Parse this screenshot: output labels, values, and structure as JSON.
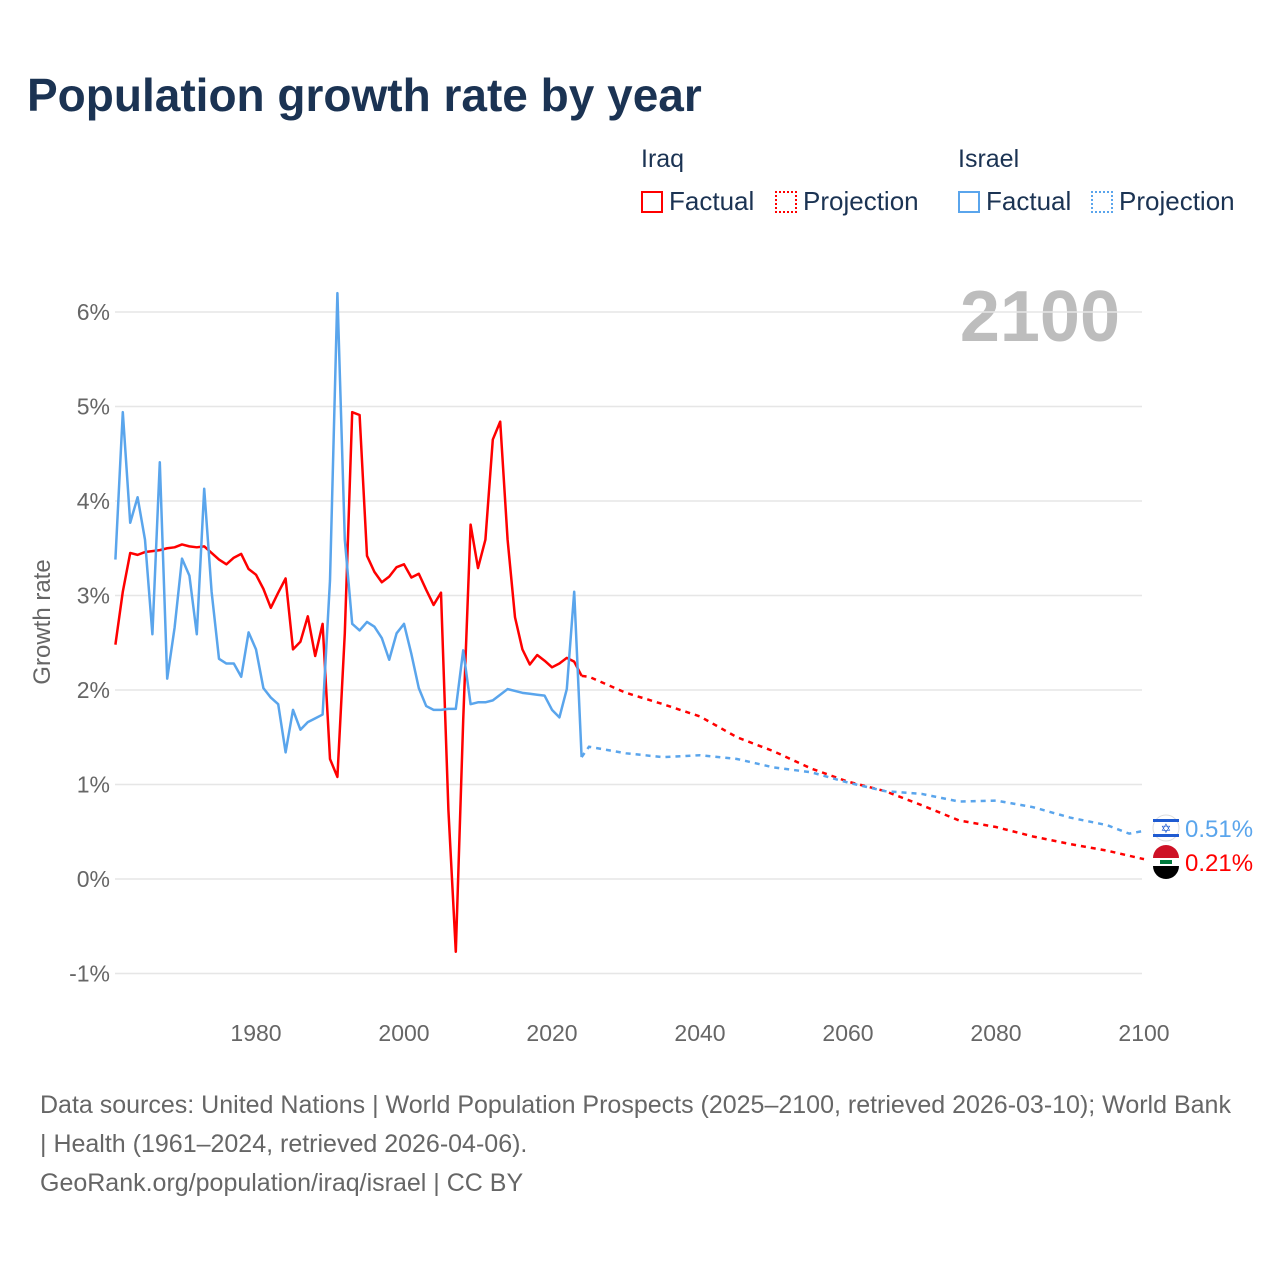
{
  "title": "Population growth rate by year",
  "legend": {
    "groups": [
      {
        "name": "Iraq",
        "factual": "Factual",
        "projection": "Projection",
        "color": "#ff0000"
      },
      {
        "name": "Israel",
        "factual": "Factual",
        "projection": "Projection",
        "color": "#5aa5ec"
      }
    ]
  },
  "footer": {
    "sources": "Data sources: United Nations | World Population Prospects (2025–2100, retrieved 2026-03-10); World Bank | Health (1961–2024, retrieved 2026-04-06).",
    "link": "GeoRank.org/population/iraq/israel | CC BY"
  },
  "chart_data": {
    "type": "line",
    "title": "Population growth rate by year",
    "xlabel": "",
    "ylabel": "Growth rate",
    "current_year_label": "2100",
    "xlim": [
      1961,
      2100
    ],
    "ylim": [
      -1.1,
      6.3
    ],
    "x_ticks": [
      1980,
      2000,
      2020,
      2040,
      2060,
      2080,
      2100
    ],
    "y_ticks": [
      -1,
      0,
      1,
      2,
      3,
      4,
      5,
      6
    ],
    "y_tick_labels": [
      "-1%",
      "0%",
      "1%",
      "2%",
      "3%",
      "4%",
      "5%",
      "6%"
    ],
    "grid": true,
    "series": [
      {
        "name": "Iraq",
        "color": "#ff0000",
        "end_label": "0.21%",
        "factual": {
          "start_year": 1961,
          "values": [
            2.48,
            3.04,
            3.45,
            3.43,
            3.46,
            3.47,
            3.48,
            3.5,
            3.51,
            3.54,
            3.52,
            3.51,
            3.52,
            3.45,
            3.38,
            3.33,
            3.4,
            3.44,
            3.28,
            3.22,
            3.07,
            2.87,
            3.03,
            3.18,
            2.43,
            2.51,
            2.78,
            2.36,
            2.7,
            1.27,
            1.08,
            2.6,
            4.94,
            4.91,
            3.42,
            3.25,
            3.14,
            3.2,
            3.3,
            3.33,
            3.19,
            3.23,
            3.06,
            2.9,
            3.03,
            0.73,
            -0.77,
            1.68,
            3.75,
            3.29,
            3.59,
            4.65,
            4.84,
            3.59,
            2.77,
            2.43,
            2.27,
            2.37,
            2.31,
            2.24,
            2.28,
            2.34,
            2.3,
            2.15
          ]
        },
        "projection": {
          "years": [
            2025,
            2030,
            2035,
            2040,
            2045,
            2050,
            2055,
            2060,
            2065,
            2070,
            2075,
            2080,
            2085,
            2090,
            2095,
            2100
          ],
          "values": [
            2.14,
            1.97,
            1.85,
            1.72,
            1.5,
            1.35,
            1.17,
            1.03,
            0.93,
            0.78,
            0.62,
            0.55,
            0.45,
            0.37,
            0.3,
            0.21
          ]
        }
      },
      {
        "name": "Israel",
        "color": "#5aa5ec",
        "end_label": "0.51%",
        "factual": {
          "start_year": 1961,
          "values": [
            3.38,
            4.94,
            3.77,
            4.04,
            3.59,
            2.59,
            4.41,
            2.12,
            2.66,
            3.39,
            3.21,
            2.59,
            4.13,
            3.04,
            2.33,
            2.28,
            2.28,
            2.14,
            2.61,
            2.43,
            2.02,
            1.92,
            1.85,
            1.34,
            1.79,
            1.58,
            1.66,
            1.7,
            1.74,
            3.16,
            6.2,
            3.59,
            2.7,
            2.63,
            2.72,
            2.67,
            2.55,
            2.32,
            2.6,
            2.7,
            2.38,
            2.02,
            1.83,
            1.79,
            1.79,
            1.8,
            1.8,
            2.42,
            1.85,
            1.87,
            1.87,
            1.89,
            1.95,
            2.01,
            1.99,
            1.97,
            1.96,
            1.95,
            1.94,
            1.79,
            1.71,
            2.01,
            3.04,
            1.29
          ]
        },
        "projection": {
          "years": [
            2025,
            2030,
            2035,
            2040,
            2045,
            2050,
            2055,
            2060,
            2065,
            2070,
            2075,
            2080,
            2085,
            2090,
            2095,
            2098,
            2100
          ],
          "values": [
            1.4,
            1.33,
            1.29,
            1.31,
            1.27,
            1.18,
            1.13,
            1.02,
            0.93,
            0.9,
            0.82,
            0.83,
            0.76,
            0.65,
            0.57,
            0.48,
            0.51
          ]
        }
      }
    ]
  }
}
